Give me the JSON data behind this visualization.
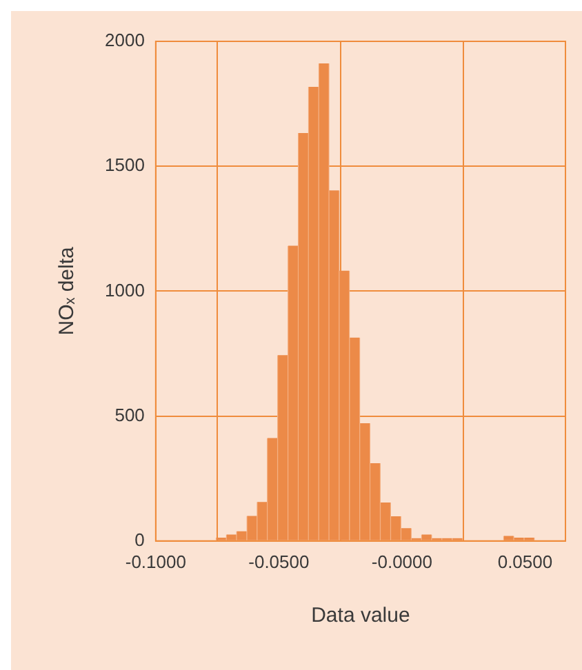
{
  "chart_data": {
    "type": "histogram",
    "xlabel": "Data value",
    "ylabel": "NOₓ delta",
    "color": "#ec8a48",
    "bins": [
      -0.0755,
      -0.0713,
      -0.0672,
      -0.063,
      -0.0588,
      -0.0547,
      -0.0505,
      -0.0463,
      -0.0421,
      -0.038,
      -0.0338,
      -0.0296,
      -0.0255,
      -0.0213,
      -0.0171,
      -0.013,
      -0.0088,
      -0.0046,
      -0.0004,
      0.0038,
      0.0079,
      0.0121,
      0.0162,
      0.0204,
      0.0246,
      0.0288,
      0.0329,
      0.0371,
      0.0413,
      0.0454,
      0.0496,
      0.0538
    ],
    "values": [
      13,
      26,
      39,
      100,
      156,
      412,
      744,
      1182,
      1633,
      1818,
      1912,
      1403,
      1082,
      814,
      471,
      311,
      154,
      99,
      51,
      11,
      26,
      11,
      11,
      11,
      0,
      0,
      0,
      0,
      20,
      13,
      13
    ],
    "xlim": [
      -0.1,
      0.0664
    ],
    "xticks": [
      {
        "value": -0.1,
        "label": "-0.1000"
      },
      {
        "value": -0.05,
        "label": "-0.0500"
      },
      {
        "value": 0,
        "label": "-0.0000"
      },
      {
        "value": 0.05,
        "label": "0.0500"
      }
    ],
    "ylim": [
      0,
      2000
    ],
    "yticks": [
      0,
      500,
      1000,
      1500,
      2000
    ],
    "grid": true
  }
}
